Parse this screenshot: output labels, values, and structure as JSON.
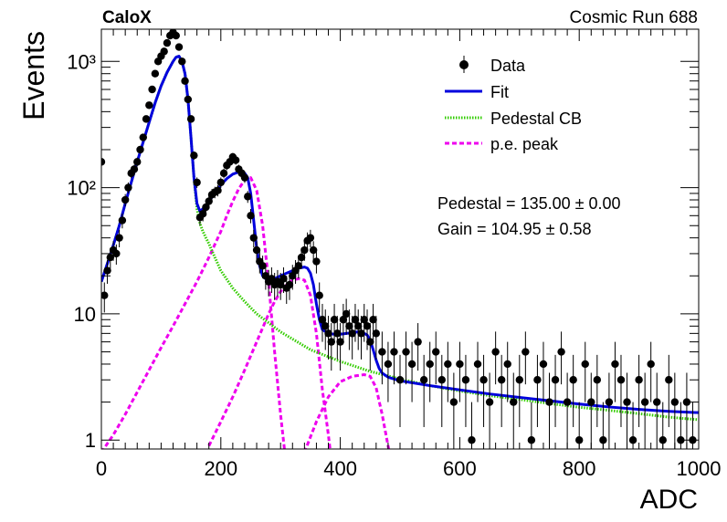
{
  "header": {
    "left_label": "CaloX",
    "right_label": "Cosmic Run 688"
  },
  "fit_results": {
    "pedestal": "Pedestal = 135.00 ± 0.00",
    "gain": "Gain = 104.95 ± 0.58"
  },
  "colors": {
    "data": "#000000",
    "fit": "#0000dd",
    "pedestal": "#33cc00",
    "pe_peak": "#ee00ee"
  },
  "chart_data": {
    "type": "scatter",
    "title": "",
    "xlabel": "ADC",
    "ylabel": "Events",
    "xlim": [
      0,
      1000
    ],
    "ylim": [
      0.85,
      1800
    ],
    "yscale": "log",
    "x_ticks": [
      0,
      200,
      400,
      600,
      800,
      1000
    ],
    "x_tick_labels": [
      "0",
      "200",
      "400",
      "600",
      "800",
      "1000"
    ],
    "y_ticks": [
      1,
      10,
      100,
      1000
    ],
    "y_tick_labels": [
      "1",
      "10",
      "10²",
      "10³"
    ],
    "legend_position": "top-right",
    "legend": [
      {
        "label": "Data",
        "style": "marker"
      },
      {
        "label": "Fit",
        "style": "solid"
      },
      {
        "label": "Pedestal CB",
        "style": "dotted"
      },
      {
        "label": "p.e. peak",
        "style": "dashed"
      }
    ],
    "series": [
      {
        "name": "Data",
        "kind": "points",
        "x": [
          0,
          5,
          10,
          15,
          20,
          25,
          30,
          35,
          40,
          45,
          50,
          55,
          60,
          65,
          70,
          75,
          80,
          85,
          90,
          95,
          100,
          105,
          110,
          115,
          120,
          125,
          130,
          135,
          140,
          145,
          150,
          155,
          160,
          165,
          170,
          175,
          180,
          185,
          190,
          195,
          200,
          205,
          210,
          215,
          220,
          225,
          230,
          235,
          240,
          245,
          250,
          255,
          260,
          265,
          270,
          275,
          280,
          285,
          290,
          295,
          300,
          305,
          310,
          315,
          320,
          325,
          330,
          335,
          340,
          345,
          350,
          355,
          360,
          365,
          370,
          375,
          380,
          385,
          390,
          395,
          400,
          405,
          410,
          415,
          420,
          425,
          430,
          435,
          440,
          445,
          450,
          455,
          460,
          470,
          480,
          490,
          500,
          510,
          520,
          530,
          540,
          550,
          560,
          570,
          580,
          590,
          600,
          610,
          620,
          630,
          640,
          650,
          660,
          670,
          680,
          690,
          700,
          710,
          720,
          730,
          740,
          750,
          760,
          770,
          780,
          790,
          800,
          810,
          820,
          830,
          840,
          850,
          860,
          870,
          880,
          890,
          900,
          910,
          920,
          930,
          940,
          950,
          960,
          970,
          980,
          990
        ],
        "y": [
          160,
          14,
          22,
          28,
          32,
          30,
          40,
          55,
          80,
          100,
          130,
          140,
          160,
          200,
          250,
          350,
          450,
          600,
          800,
          1000,
          1100,
          1200,
          1400,
          1600,
          1700,
          1600,
          1300,
          1000,
          700,
          500,
          350,
          180,
          110,
          58,
          62,
          70,
          78,
          88,
          92,
          95,
          110,
          130,
          150,
          160,
          175,
          165,
          140,
          130,
          120,
          85,
          60,
          40,
          32,
          26,
          24,
          20,
          18,
          19,
          17,
          18,
          17,
          19,
          16,
          17,
          20,
          22,
          24,
          28,
          32,
          38,
          40,
          32,
          26,
          14,
          9,
          8,
          7,
          6,
          9,
          7,
          6,
          9,
          10,
          8,
          7,
          9,
          8,
          7,
          9,
          8,
          6,
          9,
          7,
          5,
          4,
          5,
          3,
          5,
          4,
          6,
          3,
          4,
          5,
          3,
          4,
          2,
          4,
          3,
          1,
          4,
          3,
          2,
          5,
          3,
          4,
          2,
          3,
          5,
          1,
          3,
          4,
          2,
          3,
          5,
          2,
          3,
          1,
          4,
          2,
          3,
          1,
          2,
          4,
          3,
          2,
          1,
          3,
          2,
          4,
          2,
          1,
          3,
          2,
          1,
          2,
          1
        ]
      },
      {
        "name": "Fit",
        "kind": "curve",
        "x": [
          0,
          10,
          20,
          30,
          40,
          50,
          60,
          70,
          80,
          90,
          100,
          110,
          120,
          125,
          130,
          135,
          140,
          145,
          150,
          155,
          160,
          165,
          170,
          180,
          190,
          200,
          210,
          220,
          230,
          240,
          245,
          250,
          255,
          260,
          265,
          270,
          275,
          280,
          290,
          300,
          310,
          320,
          330,
          340,
          345,
          350,
          355,
          360,
          365,
          370,
          380,
          390,
          400,
          410,
          420,
          430,
          440,
          445,
          450,
          455,
          460,
          465,
          470,
          480,
          500,
          550,
          600,
          650,
          700,
          750,
          800,
          850,
          900,
          950,
          1000
        ],
        "y": [
          18,
          25,
          35,
          50,
          75,
          110,
          160,
          230,
          330,
          470,
          640,
          820,
          1000,
          1080,
          1100,
          1000,
          800,
          500,
          250,
          120,
          75,
          65,
          68,
          78,
          90,
          105,
          118,
          128,
          133,
          130,
          120,
          90,
          55,
          33,
          24,
          20,
          19,
          18.5,
          19,
          20,
          21,
          22,
          23,
          23.5,
          23,
          21,
          17,
          12,
          9,
          7.5,
          7,
          6.9,
          6.9,
          7,
          7.1,
          7.2,
          7,
          6.8,
          6.2,
          5.2,
          4.3,
          3.7,
          3.4,
          3.15,
          2.95,
          2.7,
          2.5,
          2.32,
          2.18,
          2.05,
          1.93,
          1.83,
          1.75,
          1.69,
          1.65
        ]
      },
      {
        "name": "Pedestal CB",
        "kind": "curve",
        "x": [
          0,
          10,
          20,
          30,
          40,
          50,
          60,
          70,
          80,
          90,
          100,
          110,
          120,
          125,
          130,
          135,
          140,
          145,
          150,
          155,
          160,
          165,
          170,
          175,
          180,
          190,
          200,
          220,
          240,
          260,
          280,
          300,
          350,
          400,
          450,
          500,
          550,
          600,
          650,
          700,
          750,
          800,
          850,
          900,
          950,
          1000
        ],
        "y": [
          18,
          25,
          35,
          50,
          75,
          110,
          160,
          230,
          330,
          470,
          640,
          820,
          1000,
          1080,
          1100,
          1000,
          800,
          500,
          250,
          120,
          68,
          52,
          45,
          40,
          36,
          28,
          22,
          16,
          12.5,
          10,
          8.5,
          7.2,
          5.2,
          4.2,
          3.5,
          3.05,
          2.7,
          2.45,
          2.25,
          2.1,
          1.95,
          1.82,
          1.72,
          1.62,
          1.52,
          1.45
        ]
      },
      {
        "name": "p.e. peak 1",
        "kind": "curve",
        "x": [
          0,
          20,
          40,
          60,
          80,
          100,
          120,
          140,
          160,
          180,
          200,
          210,
          220,
          230,
          240,
          250,
          260,
          270,
          280,
          290,
          300,
          310
        ],
        "y": [
          0.8,
          1.1,
          1.6,
          2.4,
          3.6,
          5.4,
          8,
          12,
          18,
          28,
          45,
          60,
          78,
          98,
          115,
          120,
          95,
          50,
          18,
          5,
          1.6,
          0.6
        ]
      },
      {
        "name": "p.e. peak 2",
        "kind": "curve",
        "x": [
          180,
          200,
          220,
          240,
          260,
          280,
          290,
          300,
          310,
          320,
          330,
          340,
          350,
          360,
          370,
          380,
          385
        ],
        "y": [
          0.9,
          1.4,
          2.2,
          3.6,
          6,
          10,
          12.5,
          15,
          17,
          18.5,
          19,
          18.5,
          14,
          7,
          2.5,
          1.1,
          0.7
        ]
      },
      {
        "name": "p.e. peak 3",
        "kind": "curve",
        "x": [
          340,
          360,
          380,
          400,
          420,
          440,
          450,
          460,
          470,
          480,
          485
        ],
        "y": [
          0.8,
          1.4,
          2.2,
          2.9,
          3.2,
          3.3,
          3.2,
          2.6,
          1.6,
          0.9,
          0.7
        ]
      }
    ]
  }
}
